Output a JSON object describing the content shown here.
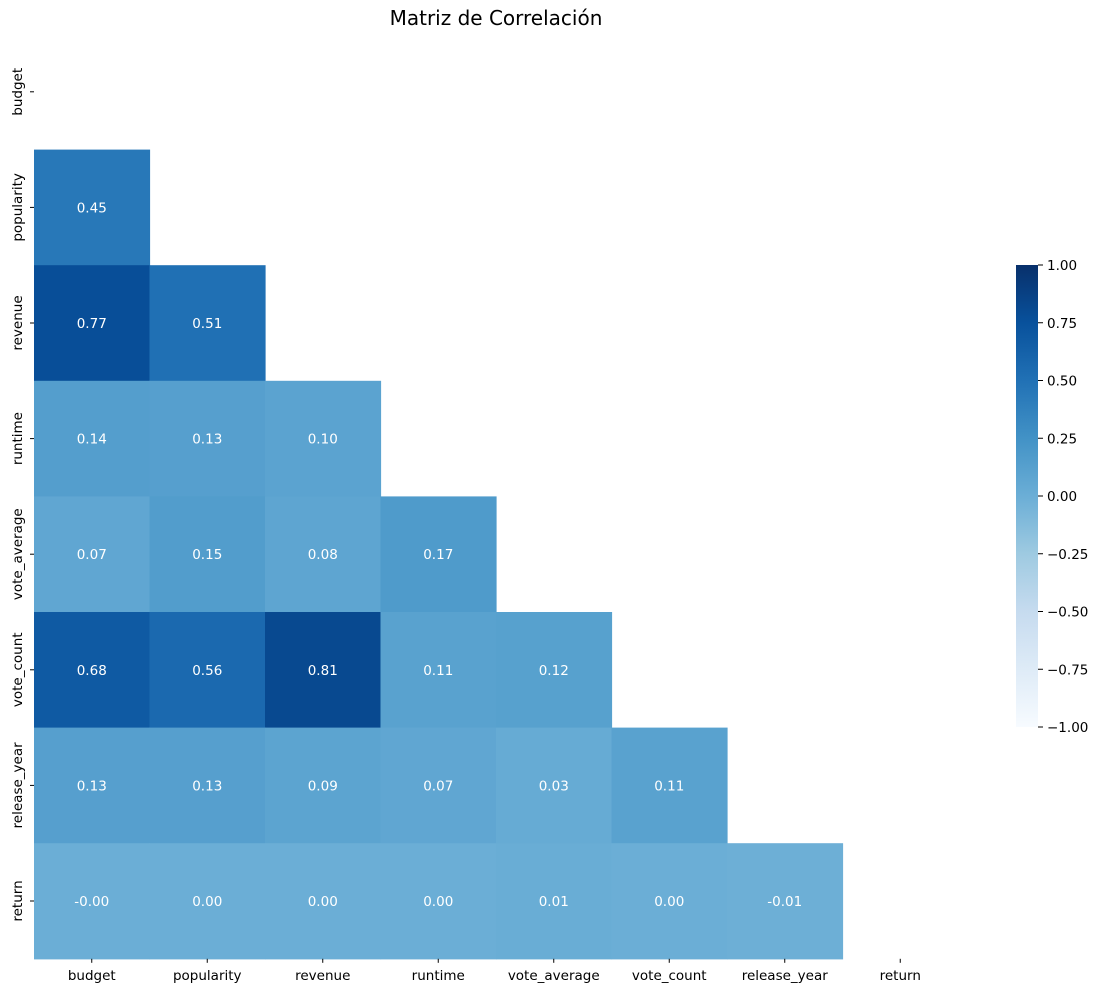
{
  "chart_data": {
    "type": "heatmap",
    "title": "Matriz de Correlación",
    "labels": [
      "budget",
      "popularity",
      "revenue",
      "runtime",
      "vote_average",
      "vote_count",
      "release_year",
      "return"
    ],
    "mask": "upper-triangle-including-diagonal",
    "matrix": [
      [
        null,
        null,
        null,
        null,
        null,
        null,
        null,
        null
      ],
      [
        0.45,
        null,
        null,
        null,
        null,
        null,
        null,
        null
      ],
      [
        0.77,
        0.51,
        null,
        null,
        null,
        null,
        null,
        null
      ],
      [
        0.14,
        0.13,
        0.1,
        null,
        null,
        null,
        null,
        null
      ],
      [
        0.07,
        0.15,
        0.08,
        0.17,
        null,
        null,
        null,
        null
      ],
      [
        0.68,
        0.56,
        0.81,
        0.11,
        0.12,
        null,
        null,
        null
      ],
      [
        0.13,
        0.13,
        0.09,
        0.07,
        0.03,
        0.11,
        null,
        null
      ],
      [
        -0.0,
        0.0,
        0.0,
        0.0,
        0.01,
        0.0,
        -0.01,
        null
      ]
    ],
    "cell_labels": [
      [
        "",
        "",
        "",
        "",
        "",
        "",
        "",
        ""
      ],
      [
        "0.45",
        "",
        "",
        "",
        "",
        "",
        "",
        ""
      ],
      [
        "0.77",
        "0.51",
        "",
        "",
        "",
        "",
        "",
        ""
      ],
      [
        "0.14",
        "0.13",
        "0.10",
        "",
        "",
        "",
        "",
        ""
      ],
      [
        "0.07",
        "0.15",
        "0.08",
        "0.17",
        "",
        "",
        "",
        ""
      ],
      [
        "0.68",
        "0.56",
        "0.81",
        "0.11",
        "0.12",
        "",
        "",
        ""
      ],
      [
        "0.13",
        "0.13",
        "0.09",
        "0.07",
        "0.03",
        "0.11",
        "",
        ""
      ],
      [
        "-0.00",
        "0.00",
        "0.00",
        "0.00",
        "0.01",
        "0.00",
        "-0.01",
        ""
      ]
    ],
    "colormap": "Blues",
    "vmin": -1.0,
    "vmax": 1.0,
    "colorbar_ticks": [
      "1.00",
      "0.75",
      "0.50",
      "0.25",
      "0.00",
      "−0.25",
      "−0.50",
      "−0.75",
      "−1.00"
    ],
    "colorbar_tick_values": [
      1.0,
      0.75,
      0.5,
      0.25,
      0.0,
      -0.25,
      -0.5,
      -0.75,
      -1.0
    ],
    "annotation_color": "#ffffff"
  }
}
